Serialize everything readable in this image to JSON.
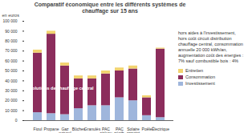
{
  "chart_data": {
    "type": "bar",
    "stacked": true,
    "title": "Comparatif économique entre les différents systèmes de chauffage sur 15 ans",
    "y_label": "en euros",
    "annotation": "Solutions de chauffage central",
    "note": "hors aides à l'investissement, hors coût circuit distribution chauffage central, consommation annuelle 20 000 kWh/an, augmentation coût des énergies : 7% sauf combustible bois : 4%",
    "categories": [
      "Fioul",
      "Propane",
      "Gaz\nnaturel",
      "Bûches",
      "Granulés",
      "PAC\nair/eau",
      "PAC\ngéoth.",
      "Solaire\nappoint",
      "Poêle",
      "Électrique"
    ],
    "series": [
      {
        "name": "Investissement",
        "color": "#9fb6dc",
        "values": [
          8000,
          7000,
          6000,
          12000,
          15000,
          15000,
          23000,
          20000,
          5000,
          3000
        ]
      },
      {
        "name": "Consommation",
        "color": "#8c2d5c",
        "values": [
          60000,
          80000,
          49000,
          30000,
          27000,
          32000,
          27000,
          32000,
          18000,
          69000
        ]
      },
      {
        "name": "Entretien",
        "color": "#f2d36f",
        "values": [
          3000,
          3000,
          3000,
          3000,
          3000,
          3000,
          3000,
          3000,
          2000,
          1000
        ]
      }
    ],
    "legend": "right",
    "ylim": [
      0,
      100000
    ],
    "yticks": [
      0,
      {
        "value": 10000,
        "label": "10 000"
      },
      {
        "value": 20000,
        "label": "20 000"
      },
      {
        "value": 30000,
        "label": "30 000"
      },
      {
        "value": 40000,
        "label": "40 000"
      },
      {
        "value": 50000,
        "label": "50 000"
      },
      {
        "value": 60000,
        "label": "60 000"
      },
      {
        "value": 70000,
        "label": "70 000"
      },
      {
        "value": 80000,
        "label": "80 000"
      },
      {
        "value": 90000,
        "label": "90 000"
      },
      {
        "value": 100000,
        "label": "100 000"
      }
    ],
    "grid": false
  }
}
